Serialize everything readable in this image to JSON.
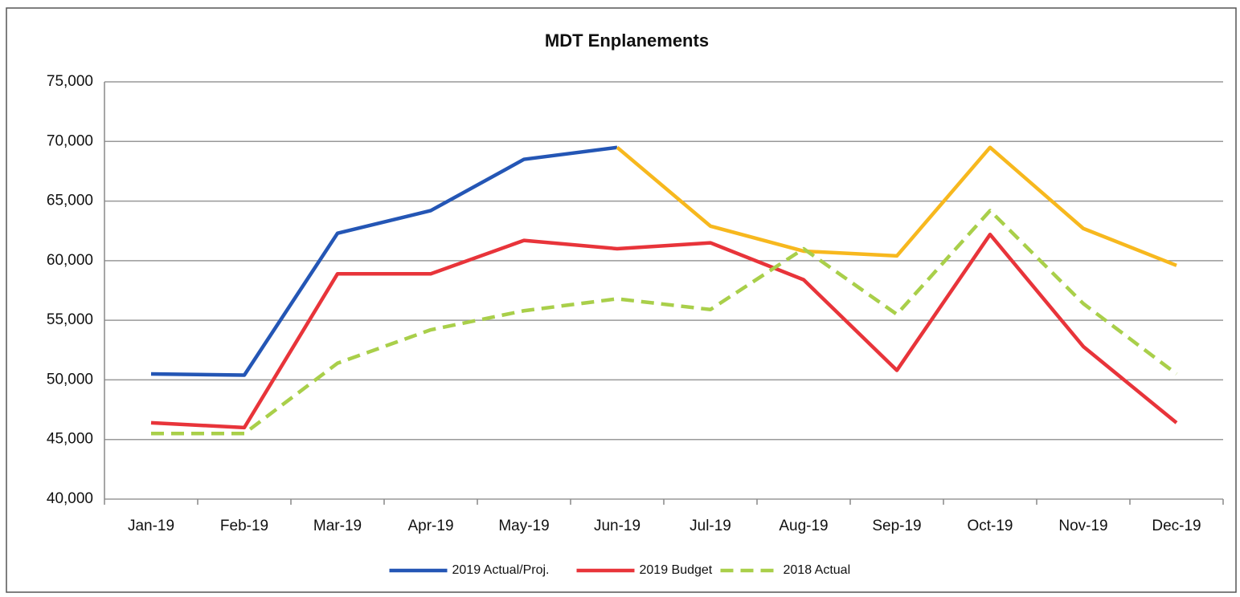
{
  "chart_data": {
    "type": "line",
    "title": "MDT Enplanements",
    "categories": [
      "Jan-19",
      "Feb-19",
      "Mar-19",
      "Apr-19",
      "May-19",
      "Jun-19",
      "Jul-19",
      "Aug-19",
      "Sep-19",
      "Oct-19",
      "Nov-19",
      "Dec-19"
    ],
    "series": [
      {
        "name": "2019 Actual/Proj.",
        "color": "#2456b5",
        "point_colors": [
          "#2456b5",
          "#2456b5",
          "#2456b5",
          "#2456b5",
          "#2456b5",
          "#2456b5",
          "#f7b81e",
          "#f7b81e",
          "#f7b81e",
          "#f7b81e",
          "#f7b81e",
          "#f7b81e"
        ],
        "values": [
          50500,
          50400,
          62300,
          64200,
          68500,
          69500,
          62900,
          60800,
          60400,
          69500,
          62700,
          59600
        ]
      },
      {
        "name": "2019 Budget",
        "color": "#e8343a",
        "values": [
          46400,
          46000,
          58900,
          58900,
          61700,
          61000,
          61500,
          58400,
          50800,
          62200,
          52800,
          46400
        ]
      },
      {
        "name": "2018 Actual",
        "color": "#a9cf4a",
        "dashed": true,
        "values": [
          45500,
          45500,
          51400,
          54200,
          55800,
          56800,
          55900,
          61000,
          55500,
          64200,
          56400,
          50500
        ]
      }
    ],
    "ylim": [
      40000,
      75000
    ],
    "yticks": [
      {
        "value": 40000,
        "label": "40,000"
      },
      {
        "value": 45000,
        "label": "45,000"
      },
      {
        "value": 50000,
        "label": "50,000"
      },
      {
        "value": 55000,
        "label": "55,000"
      },
      {
        "value": 60000,
        "label": "60,000"
      },
      {
        "value": 65000,
        "label": "65,000"
      },
      {
        "value": 70000,
        "label": "70,000"
      },
      {
        "value": 75000,
        "label": "75,000"
      }
    ],
    "grid": true,
    "legend": "bottom"
  }
}
